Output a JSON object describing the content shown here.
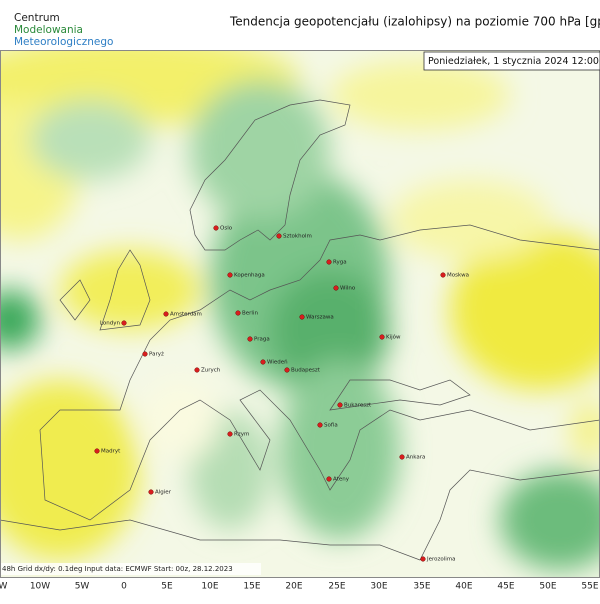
{
  "logo": {
    "lines": [
      "Centrum",
      "Modelowania",
      "Meteorologicznego"
    ]
  },
  "title": "Tendencja geopotencjału (izalohipsy) na poziomie 700 hPa  [gp",
  "date": "Poniedziałek, 1 stycznia 2024 12:00",
  "footer": "48h  Grid dx/dy: 0.1deg  Input data: ECMWF  Start: 00z, 28.12.2023",
  "longitudes": [
    "W",
    "10W",
    "5W",
    "0",
    "5E",
    "10E",
    "15E",
    "20E",
    "25E",
    "30E",
    "35E",
    "40E",
    "45E",
    "50E",
    "55E"
  ],
  "cities": [
    "Oslo",
    "Sztokholm",
    "Ryga",
    "Moskwa",
    "Kopenhaga",
    "Wilno",
    "Amsterdam",
    "Londyn",
    "Berlin",
    "Warszawa",
    "Kijów",
    "Paryż",
    "Praga",
    "Zurych",
    "Wiedeń",
    "Budapeszt",
    "Rzym",
    "Bukareszt",
    "Sofia",
    "Ankara",
    "Madryt",
    "Algier",
    "Ateny",
    "Jerozolima"
  ]
}
